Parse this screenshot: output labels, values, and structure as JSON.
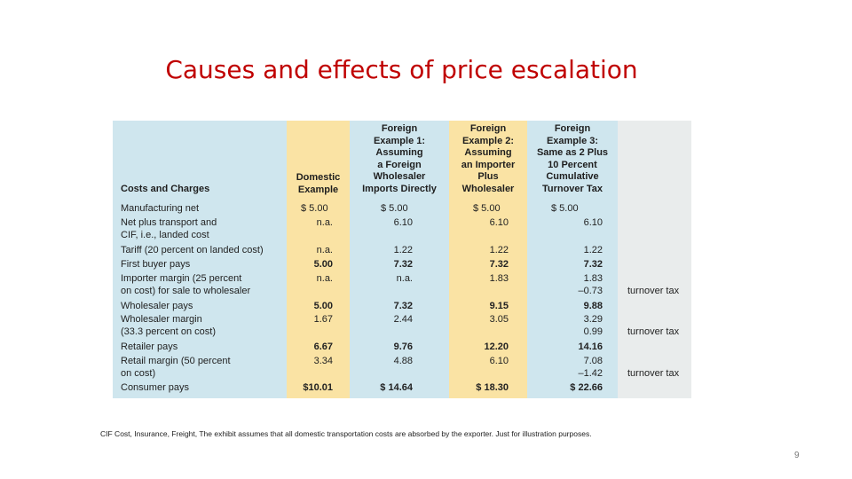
{
  "slide": {
    "title": "Causes and effects of price escalation",
    "footnote": "CIF Cost, Insurance, Freight, The exhibit assumes that all domestic transportation costs are absorbed by the exporter.  Just for illustration purposes.",
    "page_number": "9"
  },
  "colors": {
    "title": "#c00000",
    "panel_blue": "#cfe6ee",
    "panel_yellow": "#fae3a4",
    "panel_gray": "#e9ecec"
  },
  "table": {
    "headers": {
      "costs": "Costs and Charges",
      "domestic": "Domestic\nExample",
      "ex1": "Foreign\nExample 1:\nAssuming\na Foreign\nWholesaler\nImports Directly",
      "ex2": "Foreign\nExample 2:\nAssuming\nan Importer\nPlus\nWholesaler",
      "ex3": "Foreign\nExample 3:\nSame as 2 Plus\n10 Percent\nCumulative\nTurnover Tax"
    },
    "rows": {
      "mfg": {
        "label": "Manufacturing net",
        "domestic": "$  5.00",
        "ex1": "$  5.00",
        "ex2": "$  5.00",
        "ex3": "$  5.00"
      },
      "cif": {
        "label": "Net plus transport and\n    CIF, i.e., landed cost",
        "domestic": "n.a.",
        "ex1": "6.10",
        "ex2": "6.10",
        "ex3": "6.10"
      },
      "tariff": {
        "label": "Tariff (20 percent on landed cost)",
        "domestic": "n.a.",
        "ex1": "1.22",
        "ex2": "1.22",
        "ex3": "1.22"
      },
      "first_buyer": {
        "label": "First buyer pays",
        "domestic": "5.00",
        "ex1": "7.32",
        "ex2": "7.32",
        "ex3": "7.32"
      },
      "importer_margin": {
        "label": "Importer margin (25 percent\n    on cost) for sale to wholesaler",
        "domestic": "n.a.",
        "ex1": "n.a.",
        "ex2": "1.83",
        "ex3": "1.83",
        "ex3_tax": "–0.73",
        "note": "turnover tax"
      },
      "wholesaler_pays": {
        "label": "Wholesaler pays",
        "domestic": "5.00",
        "ex1": "7.32",
        "ex2": "9.15",
        "ex3": "9.88"
      },
      "wholesaler_margin": {
        "label": "Wholesaler margin\n    (33.3 percent on cost)",
        "domestic": "1.67",
        "ex1": "2.44",
        "ex2": "3.05",
        "ex3": "3.29",
        "ex3_tax": "0.99",
        "note": "turnover tax"
      },
      "retailer_pays": {
        "label": "Retailer pays",
        "domestic": "6.67",
        "ex1": "9.76",
        "ex2": "12.20",
        "ex3": "14.16"
      },
      "retail_margin": {
        "label": "Retail margin (50 percent\n    on cost)",
        "domestic": "3.34",
        "ex1": "4.88",
        "ex2": "6.10",
        "ex3": "7.08",
        "ex3_tax": "–1.42",
        "note": "turnover tax"
      },
      "consumer_pays": {
        "label": "Consumer pays",
        "domestic": "$10.01",
        "ex1": "$ 14.64",
        "ex2": "$ 18.30",
        "ex3": "$ 22.66"
      }
    }
  }
}
